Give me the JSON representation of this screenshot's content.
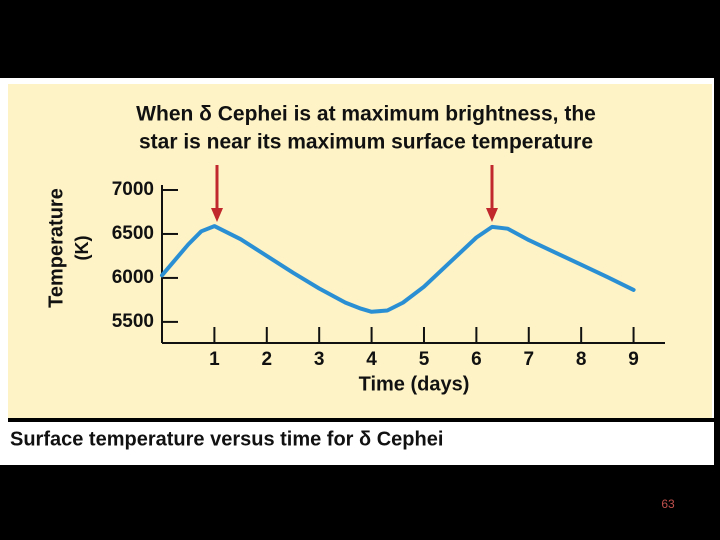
{
  "chart_data": {
    "type": "line",
    "title": [
      "When δ Cephei is at maximum brightness, the",
      "star is near its maximum surface temperature"
    ],
    "y_label": [
      "Temperature",
      "(K)"
    ],
    "x_label": "Time (days)",
    "x": [
      0,
      0.5,
      0.75,
      1,
      1.5,
      2,
      2.5,
      3,
      3.5,
      3.8,
      4,
      4.3,
      4.6,
      5,
      5.5,
      6,
      6.3,
      6.6,
      7,
      7.5,
      8,
      8.5,
      9
    ],
    "values": [
      6030,
      6380,
      6530,
      6590,
      6440,
      6250,
      6060,
      5880,
      5720,
      5650,
      5615,
      5630,
      5720,
      5900,
      6180,
      6460,
      6580,
      6560,
      6430,
      6290,
      6150,
      6010,
      5864
    ],
    "color": "#2b8fd4",
    "xlim": [
      0,
      9.6
    ],
    "xticks": [
      1,
      2,
      3,
      4,
      5,
      6,
      7,
      8,
      9
    ],
    "ylim": [
      5260,
      7000
    ],
    "yticks": [
      5500,
      6000,
      6500,
      7000
    ]
  },
  "caption": "Surface temperature versus time for δ Cephei",
  "page_number": "63"
}
